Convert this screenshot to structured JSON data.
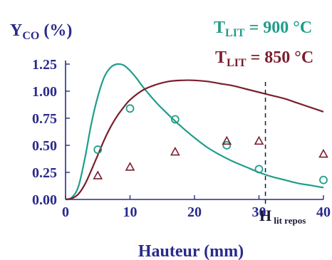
{
  "chart_data": {
    "type": "line",
    "ylabel": {
      "main": "Y",
      "sub": "CO",
      "unit": " (%)"
    },
    "xlabel": "Hauteur (mm)",
    "xlim": [
      0,
      40
    ],
    "ylim": [
      0,
      1.25
    ],
    "x_ticks": [
      0,
      10,
      20,
      30,
      40
    ],
    "y_ticks": [
      "0.00",
      "0.25",
      "0.50",
      "0.75",
      "1.00",
      "1.25"
    ],
    "grid": false,
    "series": [
      {
        "name": "900 °C",
        "legend_label": {
          "main": "T",
          "sub": "LIT",
          "rest": " = 900 °C"
        },
        "color": "#1f9e8a",
        "model_curve": {
          "x": [
            0,
            1,
            2,
            3,
            4,
            5,
            6,
            7,
            8,
            9,
            10,
            11,
            12,
            14,
            16,
            18,
            20,
            22,
            24,
            26,
            28,
            30,
            32,
            34,
            36,
            38,
            40
          ],
          "y": [
            0.0,
            0.02,
            0.12,
            0.38,
            0.7,
            0.95,
            1.13,
            1.22,
            1.25,
            1.24,
            1.19,
            1.12,
            1.04,
            0.9,
            0.78,
            0.67,
            0.57,
            0.48,
            0.41,
            0.35,
            0.3,
            0.25,
            0.21,
            0.18,
            0.15,
            0.13,
            0.11
          ]
        },
        "measured": {
          "marker": "circle",
          "x": [
            5,
            10,
            17,
            25,
            30,
            40
          ],
          "y": [
            0.46,
            0.84,
            0.74,
            0.5,
            0.28,
            0.18
          ]
        }
      },
      {
        "name": "850 °C",
        "legend_label": {
          "main": "T",
          "sub": "LIT",
          "rest": " = 850 °C"
        },
        "color": "#7a1f2e",
        "model_curve": {
          "x": [
            0,
            1,
            2,
            3,
            4,
            5,
            6,
            7,
            8,
            9,
            10,
            12,
            14,
            16,
            18,
            20,
            22,
            24,
            26,
            28,
            30,
            32,
            34,
            36,
            38,
            40
          ],
          "y": [
            0.0,
            0.01,
            0.05,
            0.14,
            0.27,
            0.41,
            0.55,
            0.67,
            0.77,
            0.85,
            0.92,
            1.01,
            1.06,
            1.09,
            1.1,
            1.1,
            1.09,
            1.07,
            1.05,
            1.02,
            0.99,
            0.96,
            0.93,
            0.89,
            0.85,
            0.81
          ]
        },
        "measured": {
          "marker": "triangle",
          "x": [
            5,
            10,
            17,
            25,
            30,
            40
          ],
          "y": [
            0.22,
            0.3,
            0.44,
            0.54,
            0.54,
            0.42
          ]
        }
      }
    ],
    "annotations": [
      {
        "type": "vline",
        "x": 31,
        "style": "dashed",
        "label": {
          "main": "H",
          "sub": " lit repos"
        }
      }
    ]
  }
}
